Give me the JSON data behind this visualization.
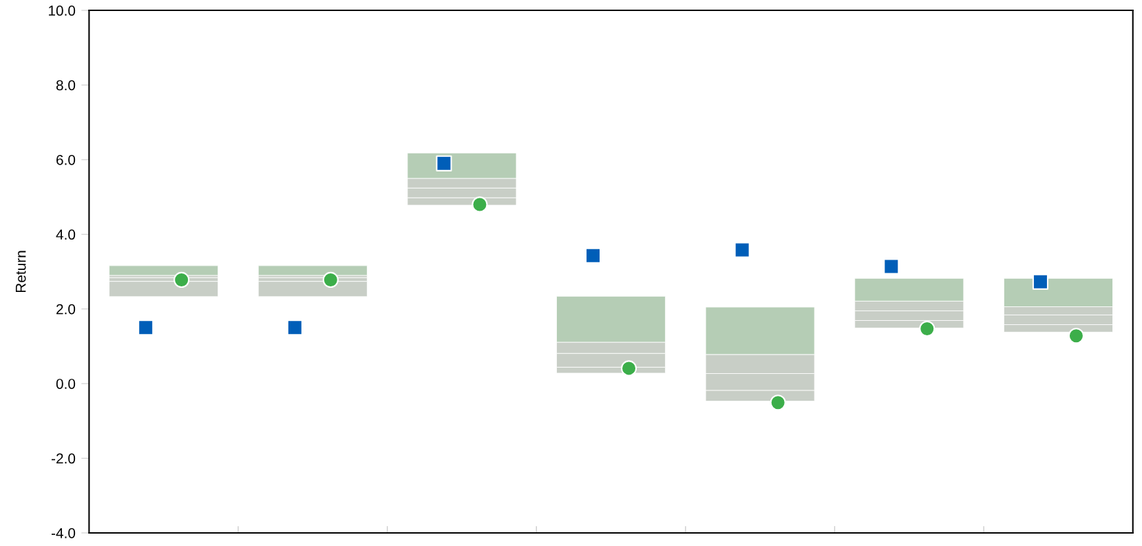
{
  "chart_data": {
    "type": "bar",
    "ylabel": "Return",
    "categories": [
      null,
      null,
      null,
      null,
      null,
      null,
      null
    ],
    "series": [
      {
        "color": "#c8cec6",
        "base": [
          2.33,
          2.33,
          4.78,
          0.28,
          -0.47,
          1.49,
          1.38
        ],
        "values": [
          0.41,
          0.41,
          0.2,
          0.16,
          0.29,
          0.2,
          0.2
        ]
      },
      {
        "color": "#c8cec6",
        "base": [
          2.74,
          2.74,
          4.98,
          0.44,
          -0.18,
          1.69,
          1.58
        ],
        "values": [
          0.1,
          0.1,
          0.26,
          0.37,
          0.45,
          0.26,
          0.26
        ]
      },
      {
        "color": "#c8cec6",
        "base": [
          2.84,
          2.84,
          5.24,
          0.81,
          0.27,
          1.95,
          1.84
        ],
        "values": [
          0.06,
          0.06,
          0.26,
          0.3,
          0.51,
          0.26,
          0.22
        ]
      },
      {
        "color": "#b5cdb5",
        "base": [
          2.9,
          2.9,
          5.5,
          1.11,
          0.78,
          2.21,
          2.06
        ],
        "values": [
          0.26,
          0.26,
          0.68,
          1.23,
          1.27,
          0.61,
          0.76
        ]
      },
      {
        "type": "scatter",
        "marker": "square",
        "color": "#005eb8",
        "values": [
          1.5,
          1.5,
          5.9,
          3.43,
          3.58,
          3.14,
          2.73
        ]
      },
      {
        "type": "scatter",
        "marker": "circle",
        "color": "#3cae4a",
        "values": [
          2.78,
          2.78,
          4.8,
          0.41,
          -0.51,
          1.47,
          1.28
        ]
      }
    ],
    "ylim": [
      -4,
      10
    ],
    "yticks": [
      {
        "value": -4,
        "label": "-4.0"
      },
      {
        "value": -2,
        "label": "-2.0"
      },
      {
        "value": 0,
        "label": "0.0"
      },
      {
        "value": 2,
        "label": "2.0"
      },
      {
        "value": 4,
        "label": "4.0"
      },
      {
        "value": 6,
        "label": "6.0"
      },
      {
        "value": 8,
        "label": "8.0"
      },
      {
        "value": 10,
        "label": "10.0"
      }
    ]
  }
}
